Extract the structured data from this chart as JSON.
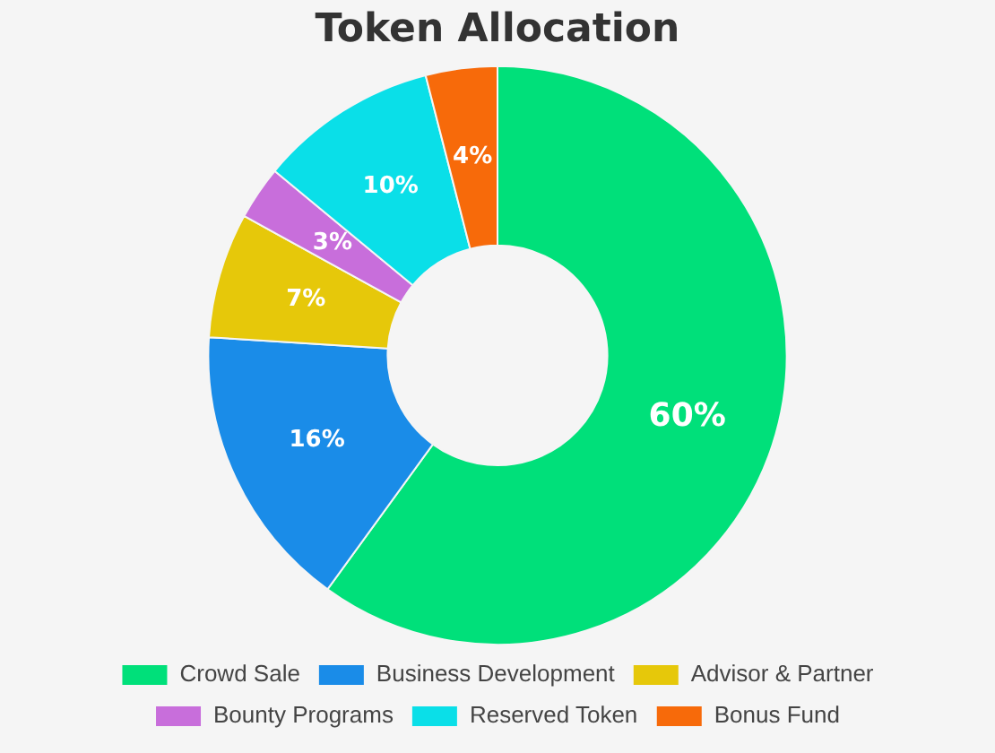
{
  "chart_data": {
    "type": "donut",
    "title": "Token Allocation",
    "categories": [
      "Crowd Sale",
      "Business Development",
      "Advisor & Partner",
      "Bounty Programs",
      "Reserved Token",
      "Bonus Fund"
    ],
    "values": [
      60,
      16,
      7,
      3,
      10,
      4
    ],
    "colors": [
      "#00e07a",
      "#1a8ce8",
      "#e6c80a",
      "#c86edb",
      "#0adfe8",
      "#f76a0a"
    ],
    "value_labels": [
      "60%",
      "16%",
      "7%",
      "3%",
      "10%",
      "4%"
    ],
    "legend": "bottom"
  }
}
